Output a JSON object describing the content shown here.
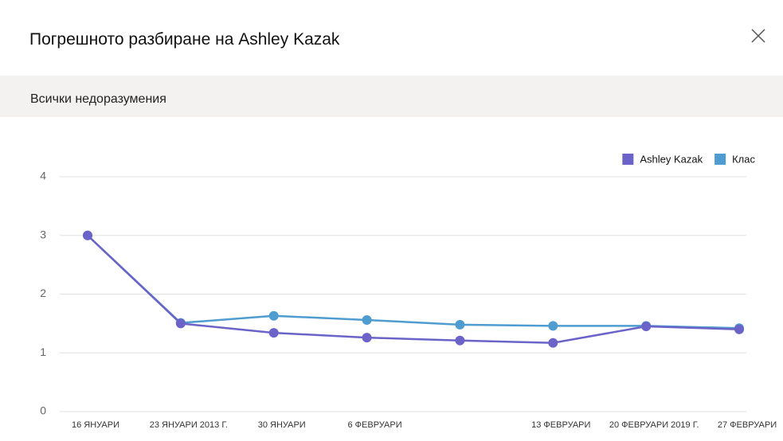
{
  "header": {
    "title": "Погрешното разбиране на Ashley Kazak"
  },
  "subheader": {
    "title": "Всички недоразумения"
  },
  "chart_data": {
    "type": "line",
    "categories": [
      "16 ЯНУАРИ",
      "23 ЯНУАРИ 2013 Г.",
      "30 ЯНУАРИ",
      "6 ФЕВРУАРИ",
      null,
      "13 ФЕВРУАРИ",
      "20 ФЕВРУАРИ 2019 Г.",
      "27 ФЕВРУАРИ"
    ],
    "series": [
      {
        "name": "Ashley Kazak",
        "color": "#6b63c8",
        "values": [
          3.0,
          1.5,
          1.34,
          1.26,
          1.21,
          1.17,
          1.45,
          1.4
        ]
      },
      {
        "name": "Клас",
        "color": "#4f9cd0",
        "values": [
          3.0,
          1.51,
          1.63,
          1.56,
          1.48,
          1.46,
          1.46,
          1.42
        ]
      }
    ],
    "ylim": [
      0,
      4
    ],
    "yticks": [
      0,
      1,
      2,
      3,
      4
    ],
    "grid": true,
    "legend": "top-right"
  }
}
